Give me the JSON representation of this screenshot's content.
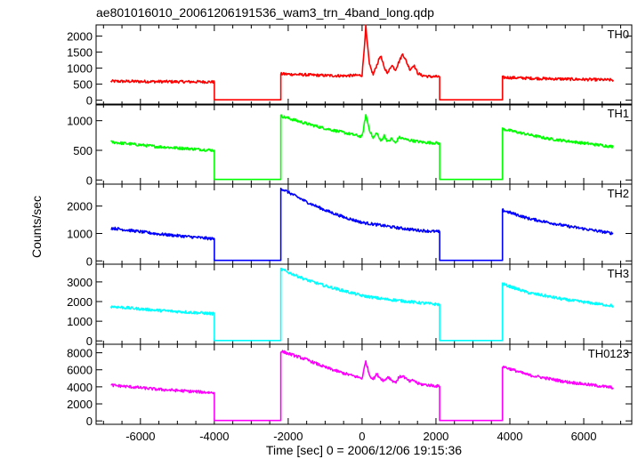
{
  "chart_data": {
    "type": "line",
    "title": "ae801016010_20061206191536_wam3_trn_4band_long.qdp",
    "xlabel": "Time [sec] 0 = 2006/12/06 19:15:36",
    "ylabel": "Counts/sec",
    "xlim": [
      -7200,
      7300
    ],
    "x_ticks": [
      -6000,
      -4000,
      -2000,
      0,
      2000,
      4000,
      6000
    ],
    "grid": false,
    "colors": {
      "TH0": "#ff0000",
      "TH1": "#00ff00",
      "TH2": "#0000ff",
      "TH3": "#00ffff",
      "TH0123": "#ff00ff"
    },
    "panels": [
      {
        "name": "TH0",
        "color": "#ff0000",
        "ylim": [
          -150,
          2350
        ],
        "y_ticks": [
          0,
          500,
          1000,
          1500,
          2000
        ],
        "segments": [
          {
            "x": [
              -6800,
              -5500,
              -4000
            ],
            "y": [
              590,
              580,
              570
            ]
          },
          {
            "x": [
              -4000,
              -2200
            ],
            "y": [
              10,
              10
            ]
          },
          {
            "x": [
              -2200,
              -1500,
              -1000,
              -500,
              0,
              50,
              100,
              130,
              200,
              300,
              400,
              500,
              600,
              700,
              800,
              900,
              1000,
              1100,
              1200,
              1300,
              1400,
              1500,
              1600,
              1800,
              2100
            ],
            "y": [
              820,
              790,
              770,
              760,
              780,
              1500,
              2300,
              1900,
              1100,
              800,
              1100,
              1400,
              1000,
              850,
              1100,
              950,
              1200,
              1450,
              1200,
              950,
              1100,
              850,
              780,
              740,
              730
            ]
          },
          {
            "x": [
              2100,
              3800
            ],
            "y": [
              10,
              10
            ]
          },
          {
            "x": [
              3800,
              5000,
              6800
            ],
            "y": [
              710,
              670,
              630
            ]
          }
        ]
      },
      {
        "name": "TH1",
        "color": "#00ff00",
        "ylim": [
          -70,
          1280
        ],
        "y_ticks": [
          0,
          500,
          1000
        ],
        "segments": [
          {
            "x": [
              -6800,
              -5500,
              -4000
            ],
            "y": [
              640,
              560,
              500
            ]
          },
          {
            "x": [
              -4000,
              -2200
            ],
            "y": [
              10,
              10
            ]
          },
          {
            "x": [
              -2200,
              -1500,
              -1000,
              -500,
              0,
              50,
              100,
              200,
              300,
              400,
              500,
              600,
              700,
              800,
              900,
              1000,
              1200,
              1400,
              1600,
              1800,
              2100
            ],
            "y": [
              1080,
              950,
              870,
              800,
              730,
              900,
              1100,
              850,
              700,
              800,
              650,
              750,
              640,
              700,
              620,
              720,
              680,
              660,
              640,
              630,
              620
            ]
          },
          {
            "x": [
              2100,
              3800
            ],
            "y": [
              10,
              10
            ]
          },
          {
            "x": [
              3800,
              5000,
              6800
            ],
            "y": [
              860,
              700,
              560
            ]
          }
        ]
      },
      {
        "name": "TH2",
        "color": "#0000ff",
        "ylim": [
          -120,
          2800
        ],
        "y_ticks": [
          0,
          1000,
          2000
        ],
        "segments": [
          {
            "x": [
              -6800,
              -5500,
              -4000
            ],
            "y": [
              1200,
              980,
              800
            ]
          },
          {
            "x": [
              -4000,
              -2200
            ],
            "y": [
              20,
              20
            ]
          },
          {
            "x": [
              -2200,
              -1500,
              -1000,
              -500,
              0,
              500,
              1000,
              1500,
              2100
            ],
            "y": [
              2650,
              2150,
              1850,
              1600,
              1400,
              1300,
              1200,
              1120,
              1060
            ]
          },
          {
            "x": [
              2100,
              3800
            ],
            "y": [
              20,
              20
            ]
          },
          {
            "x": [
              3800,
              4500,
              5500,
              6800
            ],
            "y": [
              1850,
              1550,
              1280,
              1000
            ]
          }
        ]
      },
      {
        "name": "TH3",
        "color": "#00ffff",
        "ylim": [
          -170,
          3900
        ],
        "y_ticks": [
          0,
          1000,
          2000,
          3000
        ],
        "segments": [
          {
            "x": [
              -6800,
              -5500,
              -4000
            ],
            "y": [
              1750,
              1550,
              1380
            ]
          },
          {
            "x": [
              -4000,
              -2200
            ],
            "y": [
              20,
              20
            ]
          },
          {
            "x": [
              -2200,
              -1500,
              -1000,
              -500,
              0,
              500,
              1000,
              1500,
              2100
            ],
            "y": [
              3650,
              3100,
              2800,
              2550,
              2300,
              2150,
              2050,
              1950,
              1850
            ]
          },
          {
            "x": [
              2100,
              3800
            ],
            "y": [
              20,
              20
            ]
          },
          {
            "x": [
              3800,
              4500,
              5500,
              6800
            ],
            "y": [
              2900,
              2450,
              2100,
              1780
            ]
          }
        ]
      },
      {
        "name": "TH0123",
        "color": "#ff00ff",
        "ylim": [
          -400,
          9000
        ],
        "y_ticks": [
          0,
          2000,
          4000,
          6000,
          8000
        ],
        "segments": [
          {
            "x": [
              -6800,
              -5500,
              -4000
            ],
            "y": [
              4200,
              3700,
              3300
            ]
          },
          {
            "x": [
              -4000,
              -2200
            ],
            "y": [
              50,
              50
            ]
          },
          {
            "x": [
              -2200,
              -1500,
              -1000,
              -500,
              0,
              50,
              100,
              150,
              200,
              300,
              400,
              500,
              600,
              700,
              800,
              900,
              1000,
              1100,
              1200,
              1300,
              1400,
              1500,
              1600,
              1800,
              2100
            ],
            "y": [
              8200,
              7200,
              6300,
              5600,
              5000,
              6000,
              7000,
              6200,
              5400,
              4900,
              5500,
              5000,
              4700,
              5200,
              4800,
              4500,
              5100,
              5300,
              4900,
              4600,
              4800,
              4400,
              4300,
              4200,
              4050
            ]
          },
          {
            "x": [
              2100,
              3800
            ],
            "y": [
              50,
              50
            ]
          },
          {
            "x": [
              3800,
              4500,
              5500,
              6800
            ],
            "y": [
              6400,
              5400,
              4600,
              3900
            ]
          }
        ]
      }
    ]
  }
}
